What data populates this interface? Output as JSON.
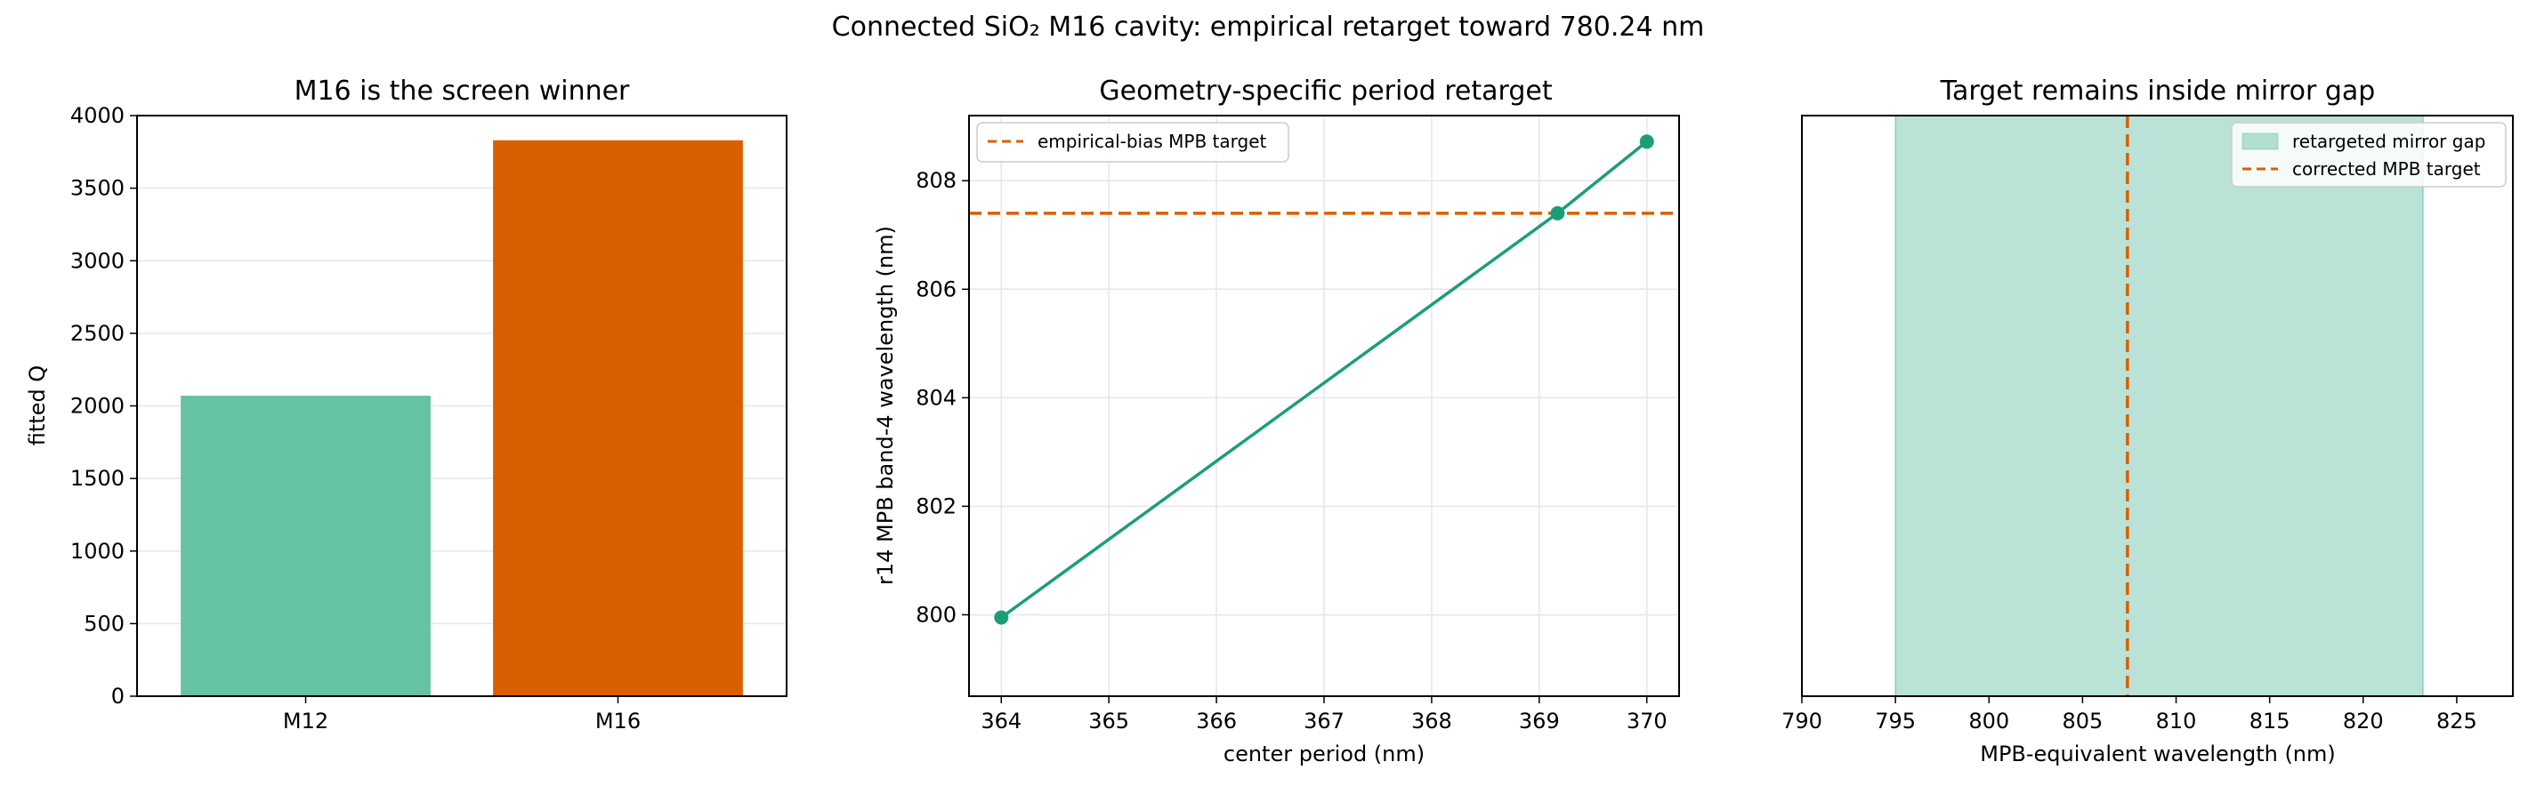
{
  "figure": {
    "title": "Connected SiO₂ M16 cavity: empirical retarget toward 780.24 nm"
  },
  "chart_data": [
    {
      "type": "bar",
      "title": "M16 is the screen winner",
      "xlabel": "",
      "ylabel": "fitted Q",
      "categories": [
        "M12",
        "M16"
      ],
      "values": [
        2070,
        3830
      ],
      "colors": [
        "#66c2a5",
        "#d95f02"
      ],
      "ylim": [
        0,
        4000
      ],
      "yticks": [
        0,
        500,
        1000,
        1500,
        2000,
        2500,
        3000,
        3500,
        4000
      ],
      "grid": "y"
    },
    {
      "type": "line",
      "title": "Geometry-specific period retarget",
      "xlabel": "center period (nm)",
      "ylabel": "r14 MPB band-4 wavelength (nm)",
      "series": [
        {
          "x": [
            364.0,
            369.17,
            370.0
          ],
          "y": [
            799.95,
            807.4,
            808.72
          ],
          "color": "#1b9e77"
        }
      ],
      "hlines": [
        {
          "y": 807.4,
          "label": "empirical-bias MPB target",
          "color": "#d95f02"
        }
      ],
      "xlim": [
        363.7,
        370.3
      ],
      "ylim": [
        798.5,
        809.2
      ],
      "xticks": [
        364,
        365,
        366,
        367,
        368,
        369,
        370
      ],
      "yticks": [
        800,
        802,
        804,
        806,
        808
      ],
      "grid": "both",
      "legend": "top-left"
    },
    {
      "type": "area",
      "title": "Target remains inside mirror gap",
      "xlabel": "MPB-equivalent wavelength (nm)",
      "ylabel": "",
      "spans": [
        {
          "x0": 795.0,
          "x1": 823.2,
          "label": "retargeted mirror gap",
          "color": "#1b9e77"
        }
      ],
      "vlines": [
        {
          "x": 807.4,
          "label": "corrected MPB target",
          "color": "#d95f02"
        }
      ],
      "xlim": [
        790,
        828
      ],
      "xticks": [
        790,
        795,
        800,
        805,
        810,
        815,
        820,
        825
      ],
      "grid": "none",
      "legend": "top-right"
    }
  ]
}
